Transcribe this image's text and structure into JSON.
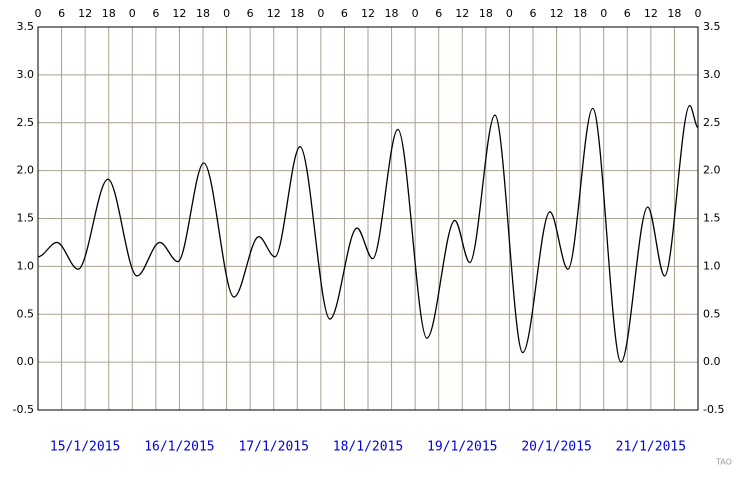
{
  "chart_data": {
    "type": "line",
    "x": [
      0,
      4.8,
      10.2,
      17.8,
      25.2,
      31,
      35.6,
      42.2,
      49.9,
      56.2,
      60.3,
      66.7,
      74.3,
      81.2,
      85.2,
      91.6,
      99,
      106.1,
      109.9,
      116.3,
      123.4,
      130.3,
      134.9,
      141.2,
      148.4,
      155.2,
      159.5,
      165.9,
      168
    ],
    "series": [
      {
        "color": "#000000",
        "values": [
          1.1,
          1.25,
          0.97,
          1.91,
          0.9,
          1.25,
          1.05,
          2.08,
          0.68,
          1.31,
          1.1,
          2.25,
          0.45,
          1.4,
          1.08,
          2.43,
          0.25,
          1.48,
          1.04,
          2.58,
          0.1,
          1.57,
          0.97,
          2.65,
          0.0,
          1.62,
          0.9,
          2.68,
          2.45
        ]
      }
    ],
    "xlim": [
      0,
      168
    ],
    "xticks": [
      0,
      6,
      12,
      18,
      {
        "value": 24,
        "label": "0"
      },
      {
        "value": 30,
        "label": "6"
      },
      {
        "value": 36,
        "label": "12"
      },
      {
        "value": 42,
        "label": "18"
      },
      {
        "value": 48,
        "label": "0"
      },
      {
        "value": 54,
        "label": "6"
      },
      {
        "value": 60,
        "label": "12"
      },
      {
        "value": 66,
        "label": "18"
      },
      {
        "value": 72,
        "label": "0"
      },
      {
        "value": 78,
        "label": "6"
      },
      {
        "value": 84,
        "label": "12"
      },
      {
        "value": 90,
        "label": "18"
      },
      {
        "value": 96,
        "label": "0"
      },
      {
        "value": 102,
        "label": "6"
      },
      {
        "value": 108,
        "label": "12"
      },
      {
        "value": 114,
        "label": "18"
      },
      {
        "value": 120,
        "label": "0"
      },
      {
        "value": 126,
        "label": "6"
      },
      {
        "value": 132,
        "label": "12"
      },
      {
        "value": 138,
        "label": "18"
      },
      {
        "value": 144,
        "label": "0"
      },
      {
        "value": 150,
        "label": "6"
      },
      {
        "value": 156,
        "label": "12"
      },
      {
        "value": 162,
        "label": "18"
      },
      {
        "value": 168,
        "label": "0"
      }
    ],
    "ylim": [
      -0.5,
      3.5
    ],
    "yticks": [
      -0.5,
      {
        "value": 0,
        "label": "0.0"
      },
      0.5,
      {
        "value": 1,
        "label": "1.0"
      },
      1.5,
      {
        "value": 2,
        "label": "2.0"
      },
      2.5,
      {
        "value": 3,
        "label": "3.0"
      },
      3.5
    ],
    "grid": true,
    "date_labels": [
      "15/1/2015",
      "16/1/2015",
      "17/1/2015",
      "18/1/2015",
      "19/1/2015",
      "20/1/2015",
      "21/1/2015"
    ],
    "watermark": "TAO"
  }
}
